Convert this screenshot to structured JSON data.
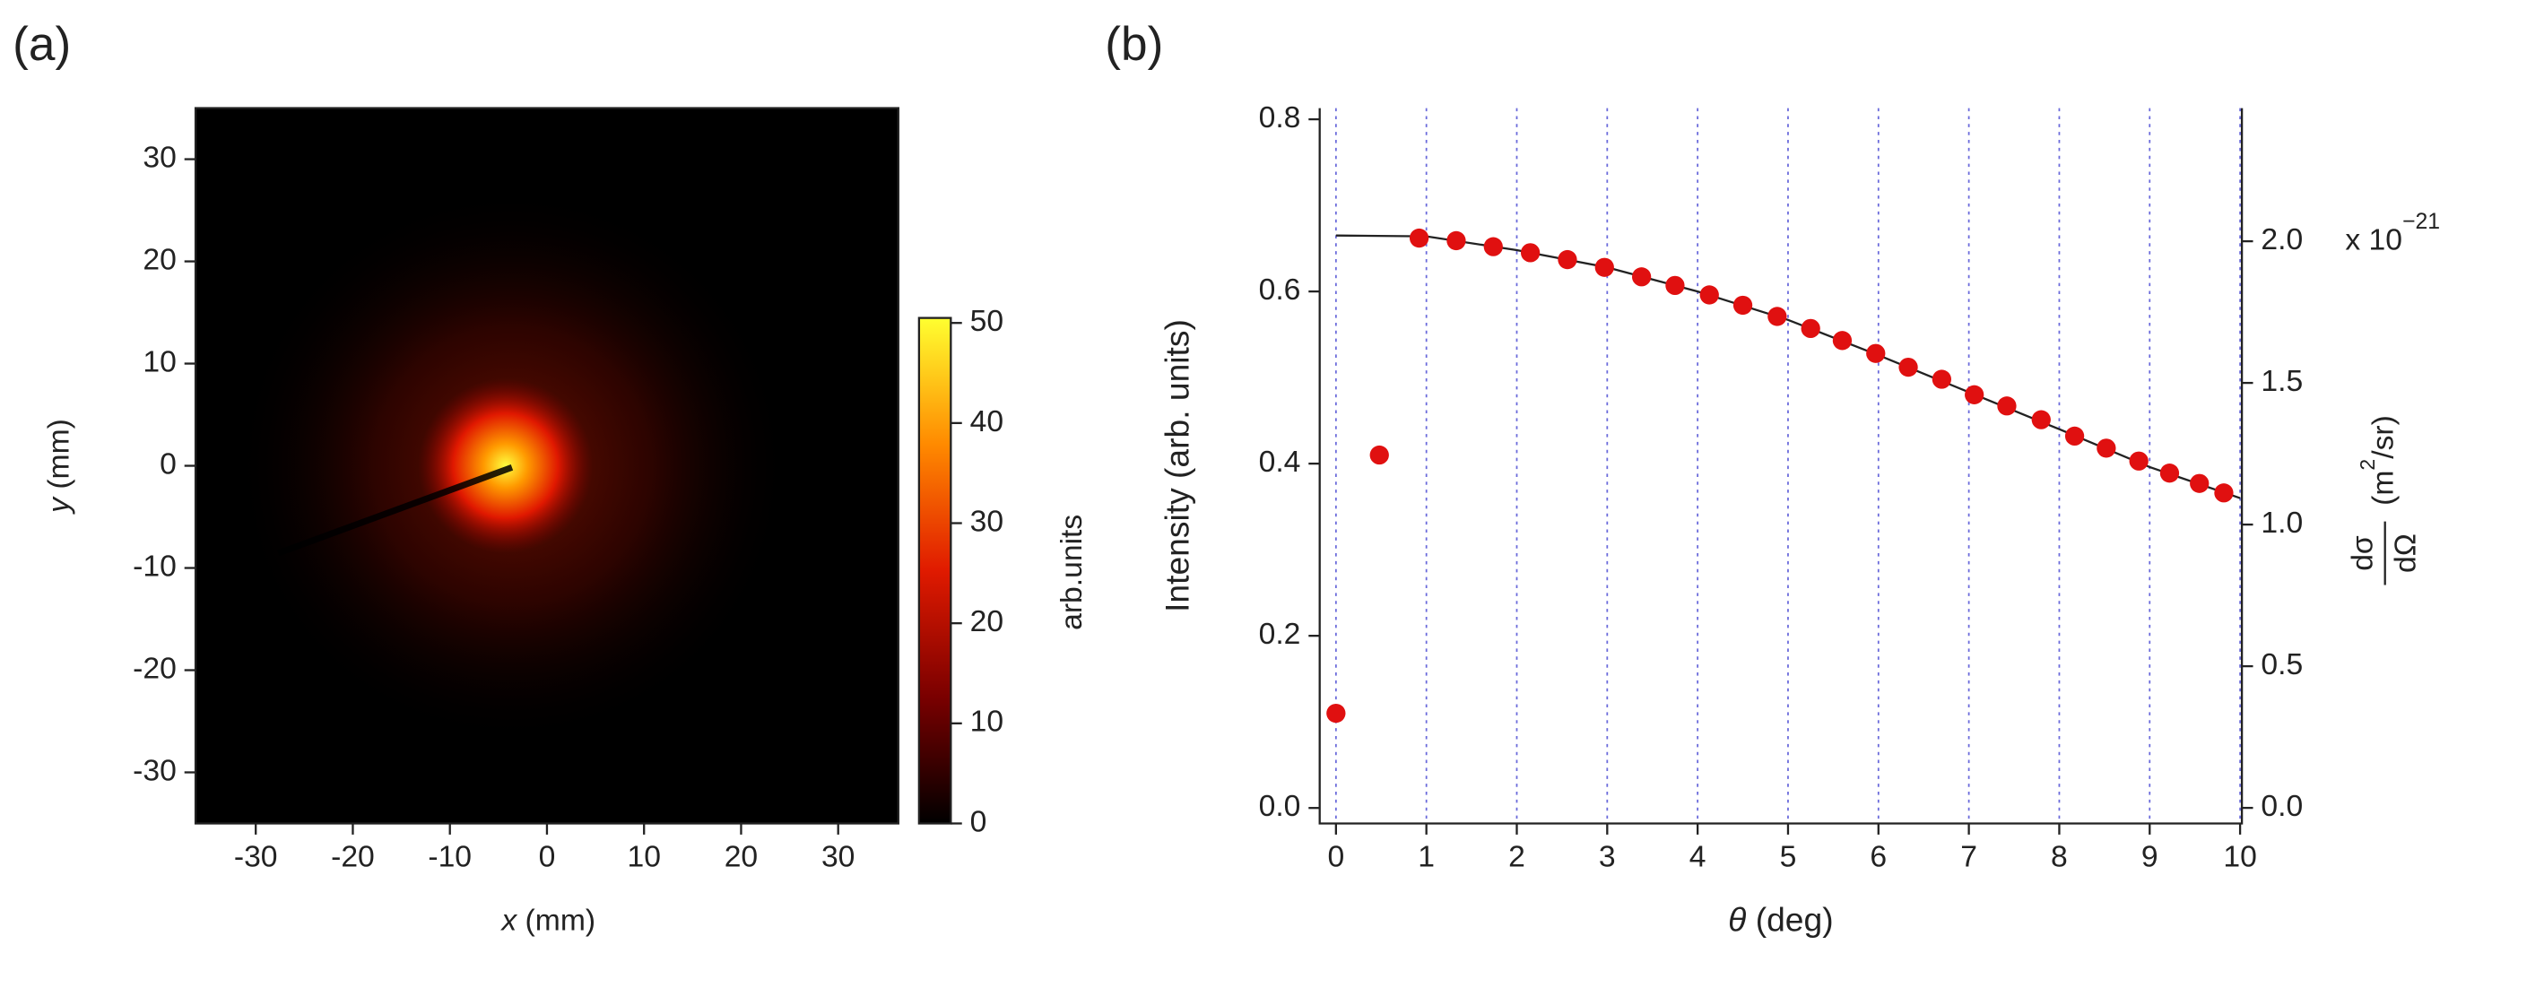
{
  "chart_data": [
    {
      "type": "image",
      "panel_label": "(a)",
      "xlabel": {
        "var": "x",
        "unit": "(mm)"
      },
      "ylabel": {
        "var": "y",
        "unit": "(mm)"
      },
      "xlim": [
        -36.2,
        36.2
      ],
      "ylim": [
        -35,
        35
      ],
      "xticks": [
        -30,
        -20,
        -10,
        0,
        10,
        20,
        30
      ],
      "yticks": [
        -30,
        -20,
        -10,
        0,
        10,
        20,
        30
      ],
      "colorbar": {
        "label": "arb.units",
        "clim": [
          0,
          50.5
        ],
        "ticks": [
          0,
          10,
          20,
          30,
          40,
          50
        ],
        "colors": [
          "#000000",
          "#7a0000",
          "#e01a00",
          "#ff8a00",
          "#ffff30"
        ]
      }
    },
    {
      "type": "scatter",
      "panel_label": "(b)",
      "xlabel": {
        "var": "θ",
        "unit": "(deg)"
      },
      "ylabel": "Intensity (arb. units)",
      "y2label": {
        "numerator": "dσ",
        "denominator": "dΩ",
        "unit": "(m",
        "sup": "2",
        "unit_end": "/sr)"
      },
      "y2_multiplier": {
        "base": "x 10",
        "exponent": "−21"
      },
      "xlim": [
        -0.18,
        10.02
      ],
      "ylim": [
        -0.018,
        0.813
      ],
      "y2lim": [
        -0.055,
        2.47
      ],
      "xticks": [
        0,
        1,
        2,
        3,
        4,
        5,
        6,
        7,
        8,
        9,
        10
      ],
      "yticks": [
        {
          "value": 0,
          "label": "0.0"
        },
        0.2,
        0.4,
        0.6,
        0.8
      ],
      "y2ticks": [
        {
          "value": 0,
          "label": "0.0"
        },
        0.5,
        {
          "value": 1,
          "label": "1.0"
        },
        1.5,
        {
          "value": 2,
          "label": "2.0"
        }
      ],
      "grid": "x",
      "grid_color": "#6a6adb",
      "points": {
        "color": "#e01010",
        "x": [
          0,
          0.48,
          0.92,
          1.33,
          1.74,
          2.15,
          2.56,
          2.97,
          3.38,
          3.75,
          4.13,
          4.5,
          4.88,
          5.25,
          5.6,
          5.97,
          6.33,
          6.7,
          7.06,
          7.42,
          7.8,
          8.17,
          8.52,
          8.88,
          9.22,
          9.55,
          9.82
        ],
        "values": [
          0.11,
          0.41,
          0.662,
          0.659,
          0.652,
          0.645,
          0.637,
          0.628,
          0.617,
          0.607,
          0.596,
          0.584,
          0.571,
          0.557,
          0.543,
          0.528,
          0.512,
          0.498,
          0.48,
          0.467,
          0.451,
          0.432,
          0.418,
          0.403,
          0.389,
          0.377,
          0.366
        ]
      },
      "fit": {
        "color": "#222222",
        "x": [
          0,
          1,
          2,
          3,
          4,
          5,
          6,
          7,
          8,
          9,
          10
        ],
        "values": [
          0.665,
          0.664,
          0.648,
          0.628,
          0.6,
          0.567,
          0.526,
          0.483,
          0.44,
          0.396,
          0.36
        ]
      }
    }
  ]
}
